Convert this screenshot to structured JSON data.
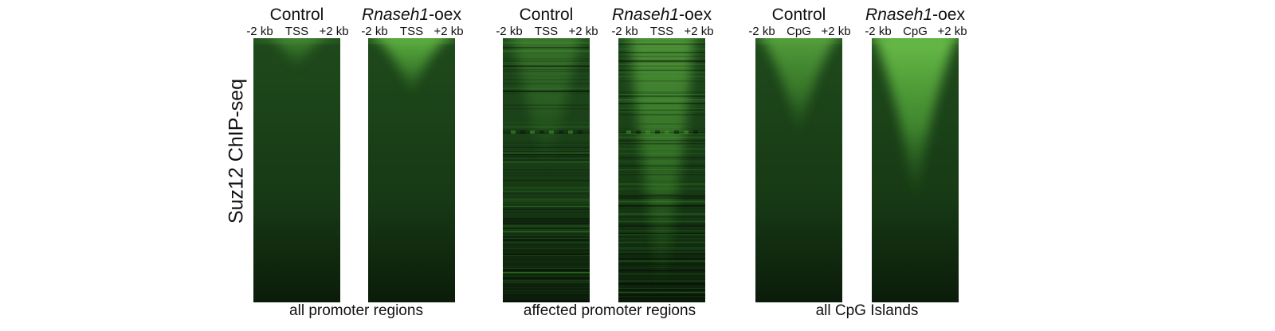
{
  "y_label": "Suz12 ChIP-seq",
  "groups": [
    {
      "caption": "all promoter regions",
      "panels": [
        {
          "title": {
            "italic": "",
            "rest": "Control"
          },
          "ticks": [
            "-2 kb",
            "TSS",
            "+2 kb"
          ]
        },
        {
          "title": {
            "italic": "Rnaseh1",
            "rest": "-oex"
          },
          "ticks": [
            "-2 kb",
            "TSS",
            "+2 kb"
          ]
        }
      ]
    },
    {
      "caption": "affected promoter regions",
      "panels": [
        {
          "title": {
            "italic": "",
            "rest": "Control"
          },
          "ticks": [
            "-2 kb",
            "TSS",
            "+2 kb"
          ]
        },
        {
          "title": {
            "italic": "Rnaseh1",
            "rest": "-oex"
          },
          "ticks": [
            "-2 kb",
            "TSS",
            "+2 kb"
          ]
        }
      ]
    },
    {
      "caption": "all CpG Islands",
      "panels": [
        {
          "title": {
            "italic": "",
            "rest": "Control"
          },
          "ticks": [
            "-2 kb",
            "CpG",
            "+2 kb"
          ]
        },
        {
          "title": {
            "italic": "Rnaseh1",
            "rest": "-oex"
          },
          "ticks": [
            "-2 kb",
            "CpG",
            "+2 kb"
          ]
        }
      ]
    }
  ]
}
